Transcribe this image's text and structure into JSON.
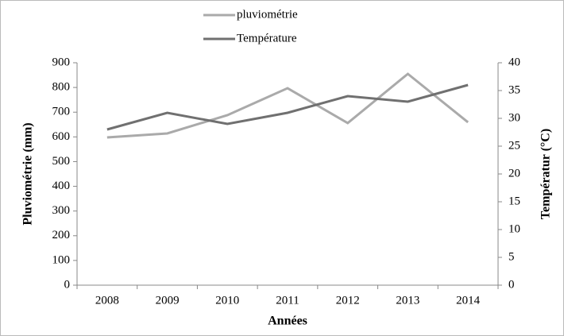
{
  "chart_data": {
    "type": "line",
    "categories": [
      "2008",
      "2009",
      "2010",
      "2011",
      "2012",
      "2013",
      "2014"
    ],
    "series": [
      {
        "name": "pluviométrie",
        "color": "#aaaaaa",
        "values": [
          598,
          614,
          688,
          797,
          656,
          855,
          659
        ]
      },
      {
        "name": "Température",
        "color": "#707070",
        "axis": "y2",
        "values": [
          28,
          31,
          29,
          31,
          34,
          33,
          36
        ]
      }
    ],
    "ylabel": "Pluviométrie (mm)",
    "y2label": "Températur (°C)",
    "xlabel": "Années",
    "ylim": [
      0,
      900
    ],
    "yticks": [
      0,
      100,
      200,
      300,
      400,
      500,
      600,
      700,
      800,
      900
    ],
    "y2lim": [
      0,
      40
    ],
    "y2ticks": [
      0,
      5,
      10,
      15,
      20,
      25,
      30,
      35,
      40
    ],
    "grid": false,
    "legend": "top"
  }
}
